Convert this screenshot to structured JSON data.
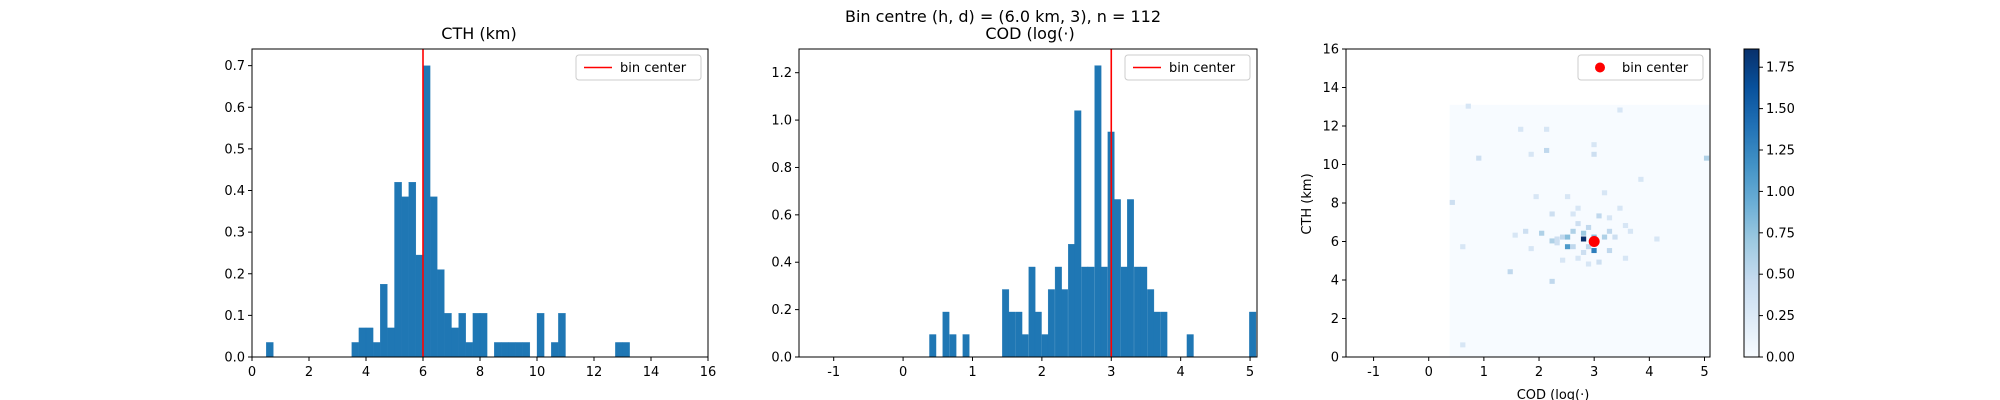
{
  "suptitle": "Bin centre (h, d) = (6.0 km, 3), n = 112",
  "colors": {
    "bar": "#1f77b4",
    "center_line": "#ff0000",
    "center_dot": "#ff0000"
  },
  "chart_data": [
    {
      "type": "bar",
      "title": "CTH (km)",
      "xlabel": "",
      "ylabel": "",
      "xlim": [
        0,
        16
      ],
      "ylim": [
        0,
        0.74
      ],
      "xticks": [
        0,
        2,
        4,
        6,
        8,
        10,
        12,
        14,
        16
      ],
      "yticks": [
        0.0,
        0.1,
        0.2,
        0.3,
        0.4,
        0.5,
        0.6,
        0.7
      ],
      "bin_width": 0.25,
      "bins": [
        [
          0.5,
          0.035
        ],
        [
          3.5,
          0.035
        ],
        [
          3.75,
          0.07
        ],
        [
          4.0,
          0.07
        ],
        [
          4.25,
          0.035
        ],
        [
          4.5,
          0.175
        ],
        [
          4.75,
          0.07
        ],
        [
          5.0,
          0.42
        ],
        [
          5.25,
          0.385
        ],
        [
          5.5,
          0.42
        ],
        [
          5.75,
          0.245
        ],
        [
          6.0,
          0.7
        ],
        [
          6.25,
          0.385
        ],
        [
          6.5,
          0.21
        ],
        [
          6.75,
          0.105
        ],
        [
          7.0,
          0.07
        ],
        [
          7.25,
          0.105
        ],
        [
          7.5,
          0.035
        ],
        [
          7.75,
          0.105
        ],
        [
          8.0,
          0.105
        ],
        [
          8.5,
          0.035
        ],
        [
          8.75,
          0.035
        ],
        [
          9.0,
          0.035
        ],
        [
          9.25,
          0.035
        ],
        [
          9.5,
          0.035
        ],
        [
          10.0,
          0.105
        ],
        [
          10.5,
          0.035
        ],
        [
          10.75,
          0.105
        ],
        [
          12.75,
          0.035
        ],
        [
          13.0,
          0.035
        ]
      ],
      "center_line": 6.0,
      "legend": "bin center",
      "legend_position": "top-right"
    },
    {
      "type": "bar",
      "title": "COD (log(·)",
      "xlabel": "",
      "ylabel": "",
      "xlim": [
        -1.5,
        5.1
      ],
      "ylim": [
        0,
        1.3
      ],
      "xticks": [
        -1,
        0,
        1,
        2,
        3,
        4,
        5
      ],
      "yticks": [
        0.0,
        0.2,
        0.4,
        0.6,
        0.8,
        1.0,
        1.2
      ],
      "bin_width": 0.095,
      "bins": [
        [
          0.38,
          0.095
        ],
        [
          0.57,
          0.19
        ],
        [
          0.67,
          0.095
        ],
        [
          0.86,
          0.095
        ],
        [
          1.43,
          0.285
        ],
        [
          1.52,
          0.19
        ],
        [
          1.62,
          0.19
        ],
        [
          1.71,
          0.095
        ],
        [
          1.81,
          0.38
        ],
        [
          1.9,
          0.19
        ],
        [
          2.0,
          0.095
        ],
        [
          2.09,
          0.285
        ],
        [
          2.19,
          0.38
        ],
        [
          2.28,
          0.285
        ],
        [
          2.38,
          0.476
        ],
        [
          2.47,
          1.04
        ],
        [
          2.57,
          0.38
        ],
        [
          2.66,
          0.38
        ],
        [
          2.76,
          1.23
        ],
        [
          2.85,
          0.38
        ],
        [
          2.95,
          0.95
        ],
        [
          3.04,
          0.665
        ],
        [
          3.14,
          0.38
        ],
        [
          3.23,
          0.665
        ],
        [
          3.33,
          0.38
        ],
        [
          3.42,
          0.38
        ],
        [
          3.52,
          0.285
        ],
        [
          3.61,
          0.19
        ],
        [
          3.71,
          0.19
        ],
        [
          4.09,
          0.095
        ],
        [
          4.99,
          0.19
        ]
      ],
      "center_line": 3.0,
      "legend": "bin center",
      "legend_position": "top-right"
    },
    {
      "type": "heatmap",
      "title": "",
      "xlabel": "COD (log(·)",
      "ylabel": "CTH (km)",
      "xlim": [
        -1.5,
        5.1
      ],
      "ylim": [
        0,
        16
      ],
      "xticks": [
        -1,
        0,
        1,
        2,
        3,
        4,
        5
      ],
      "yticks": [
        0,
        2,
        4,
        6,
        8,
        10,
        12,
        14,
        16
      ],
      "grid_x_range": [
        0.38,
        5.1
      ],
      "grid_y_range": [
        0,
        13.1
      ],
      "cell_dx": 0.095,
      "cell_dy": 0.26,
      "vmin": 0,
      "vmax": 1.86,
      "colorbar_ticks": [
        0.0,
        0.25,
        0.5,
        0.75,
        1.0,
        1.25,
        1.5,
        1.75
      ],
      "colormap": [
        "#f7fbff",
        "#deebf7",
        "#c6dbef",
        "#9ecae1",
        "#6baed6",
        "#4292c6",
        "#2171b5",
        "#08519c",
        "#08306b"
      ],
      "cells": [
        [
          0.38,
          7.9,
          0.4
        ],
        [
          0.57,
          5.6,
          0.3
        ],
        [
          0.57,
          0.5,
          0.3
        ],
        [
          0.67,
          12.9,
          0.3
        ],
        [
          0.86,
          10.2,
          0.4
        ],
        [
          1.43,
          4.3,
          0.5
        ],
        [
          1.52,
          6.2,
          0.3
        ],
        [
          1.62,
          11.7,
          0.3
        ],
        [
          1.71,
          6.4,
          0.4
        ],
        [
          1.81,
          10.4,
          0.3
        ],
        [
          1.81,
          5.5,
          0.3
        ],
        [
          1.9,
          8.2,
          0.3
        ],
        [
          2.0,
          6.3,
          0.6
        ],
        [
          2.09,
          10.6,
          0.5
        ],
        [
          2.09,
          11.7,
          0.3
        ],
        [
          2.19,
          7.3,
          0.4
        ],
        [
          2.19,
          5.9,
          0.6
        ],
        [
          2.19,
          3.8,
          0.5
        ],
        [
          2.28,
          6.0,
          0.4
        ],
        [
          2.28,
          5.8,
          0.4
        ],
        [
          2.38,
          6.1,
          0.5
        ],
        [
          2.38,
          4.9,
          0.3
        ],
        [
          2.47,
          6.1,
          0.8
        ],
        [
          2.47,
          5.6,
          1.1
        ],
        [
          2.47,
          8.2,
          0.3
        ],
        [
          2.57,
          6.4,
          0.6
        ],
        [
          2.57,
          5.6,
          0.5
        ],
        [
          2.57,
          7.3,
          0.3
        ],
        [
          2.66,
          6.8,
          0.4
        ],
        [
          2.66,
          5.0,
          0.3
        ],
        [
          2.66,
          7.6,
          0.3
        ],
        [
          2.76,
          6.0,
          1.86
        ],
        [
          2.76,
          6.3,
          0.7
        ],
        [
          2.76,
          5.3,
          0.4
        ],
        [
          2.85,
          6.6,
          0.5
        ],
        [
          2.85,
          5.6,
          0.5
        ],
        [
          2.85,
          4.7,
          0.3
        ],
        [
          2.95,
          6.1,
          0.8
        ],
        [
          2.95,
          5.4,
          1.3
        ],
        [
          2.95,
          10.9,
          0.3
        ],
        [
          2.95,
          10.4,
          0.4
        ],
        [
          3.04,
          7.2,
          0.5
        ],
        [
          3.04,
          4.8,
          0.4
        ],
        [
          3.14,
          6.1,
          0.6
        ],
        [
          3.14,
          8.4,
          0.3
        ],
        [
          3.23,
          6.4,
          0.5
        ],
        [
          3.23,
          5.4,
          0.5
        ],
        [
          3.23,
          7.1,
          0.3
        ],
        [
          3.33,
          6.1,
          0.4
        ],
        [
          3.42,
          12.7,
          0.3
        ],
        [
          3.42,
          7.6,
          0.3
        ],
        [
          3.52,
          5.0,
          0.3
        ],
        [
          3.52,
          6.7,
          0.3
        ],
        [
          3.61,
          6.4,
          0.3
        ],
        [
          3.8,
          9.1,
          0.3
        ],
        [
          4.09,
          6.0,
          0.3
        ],
        [
          4.99,
          10.2,
          0.6
        ]
      ],
      "center_point": [
        3.0,
        6.0
      ],
      "legend": "bin center",
      "legend_position": "top-right"
    }
  ]
}
